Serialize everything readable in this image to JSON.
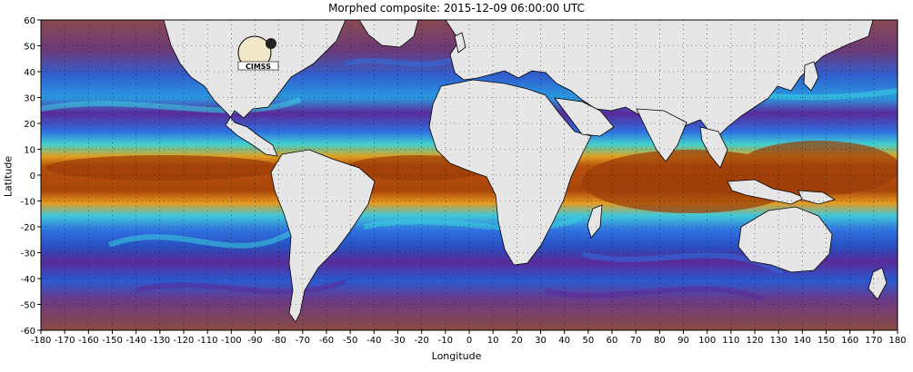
{
  "title": "Morphed composite: 2015-12-09 06:00:00 UTC",
  "xlabel": "Longitude",
  "ylabel": "Latitude",
  "x_ticks": [
    "-180",
    "-170",
    "-160",
    "-150",
    "-140",
    "-130",
    "-120",
    "-110",
    "-100",
    "-90",
    "-80",
    "-70",
    "-60",
    "-50",
    "-40",
    "-30",
    "-20",
    "-10",
    "0",
    "10",
    "20",
    "30",
    "40",
    "50",
    "60",
    "70",
    "80",
    "90",
    "100",
    "110",
    "120",
    "130",
    "140",
    "150",
    "160",
    "170",
    "180"
  ],
  "y_ticks": [
    "60",
    "50",
    "40",
    "30",
    "20",
    "10",
    "0",
    "-10",
    "-20",
    "-30",
    "-40",
    "-50",
    "-60"
  ],
  "logo_text": "CIMSS",
  "colors": {
    "land": "#e6e6e6",
    "ocean_dry": "#7a3a5a",
    "band_orange": "#c25a10",
    "band_blue": "#2f6fe0",
    "band_cyan": "#38d0e0",
    "band_purple": "#5a2a9a"
  },
  "chart_data": {
    "type": "heatmap",
    "title": "Morphed composite: 2015-12-09 06:00:00 UTC",
    "xlabel": "Longitude",
    "ylabel": "Latitude",
    "xlim": [
      -180,
      180
    ],
    "ylim": [
      -60,
      60
    ],
    "grid": true
  }
}
